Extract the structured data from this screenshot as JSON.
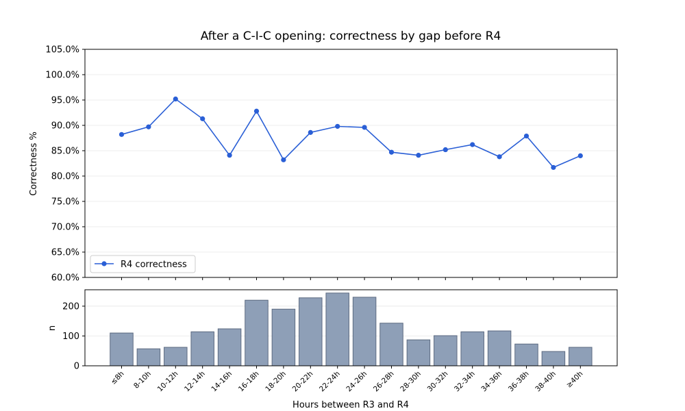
{
  "chart_data": [
    {
      "type": "line",
      "title": "After a C-I-C opening: correctness by gap before R4",
      "ylabel": "Correctness %",
      "ylim": [
        60,
        105
      ],
      "yticks": [
        "60.0%",
        "65.0%",
        "70.0%",
        "75.0%",
        "80.0%",
        "85.0%",
        "90.0%",
        "95.0%",
        "100.0%",
        "105.0%"
      ],
      "grid": "horizontal",
      "legend_position": "lower-left",
      "categories": [
        "≤8h",
        "8-10h",
        "10-12h",
        "12-14h",
        "14-16h",
        "16-18h",
        "18-20h",
        "20-22h",
        "22-24h",
        "24-26h",
        "26-28h",
        "28-30h",
        "30-32h",
        "32-34h",
        "34-36h",
        "36-38h",
        "38-40h",
        "≥40h"
      ],
      "series": [
        {
          "name": "R4 correctness",
          "color": "#2a5fd6",
          "values": [
            88.2,
            89.7,
            95.2,
            91.3,
            84.1,
            92.8,
            83.2,
            88.6,
            89.8,
            89.6,
            84.7,
            84.1,
            85.2,
            86.2,
            83.8,
            87.9,
            81.7,
            84.0
          ]
        }
      ]
    },
    {
      "type": "bar",
      "xlabel": "Hours between R3 and R4",
      "ylabel": "n",
      "ylim": [
        0,
        255
      ],
      "yticks": [
        "0",
        "100",
        "200"
      ],
      "grid": "horizontal",
      "categories": [
        "≤8h",
        "8-10h",
        "10-12h",
        "12-14h",
        "14-16h",
        "16-18h",
        "18-20h",
        "20-22h",
        "22-24h",
        "24-26h",
        "26-28h",
        "28-30h",
        "30-32h",
        "32-34h",
        "34-36h",
        "36-38h",
        "38-40h",
        "≥40h"
      ],
      "color": "#8e9fb7",
      "edge_color": "#5c6a80",
      "values": [
        110,
        57,
        62,
        114,
        124,
        220,
        190,
        228,
        244,
        230,
        143,
        87,
        101,
        114,
        117,
        73,
        48,
        62
      ]
    }
  ]
}
